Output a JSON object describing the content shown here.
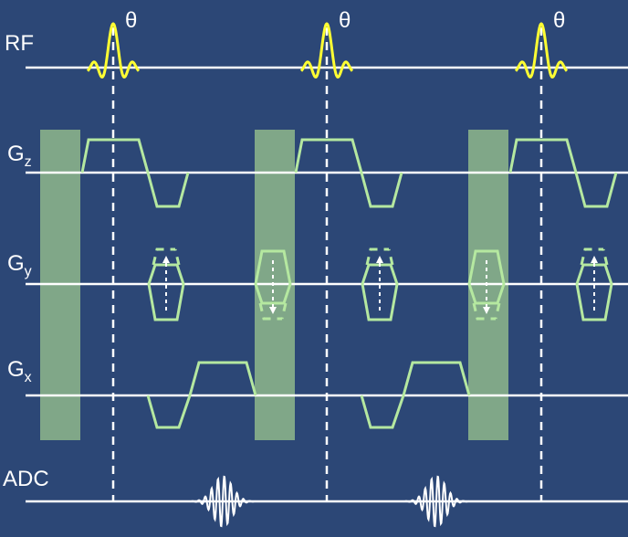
{
  "rows": {
    "rf": "RF",
    "gz": {
      "base": "G",
      "sub": "z"
    },
    "gy": {
      "base": "G",
      "sub": "y"
    },
    "gx": {
      "base": "G",
      "sub": "x"
    },
    "adc": "ADC"
  },
  "flip_angle_label": "θ",
  "repetitions": 3,
  "colors": {
    "background": "#2c4776",
    "rf_pulse": "#ffff33",
    "gradient": "#b5e8a0",
    "spoiler_block": "#8fb88c",
    "baseline": "#ffffff"
  }
}
